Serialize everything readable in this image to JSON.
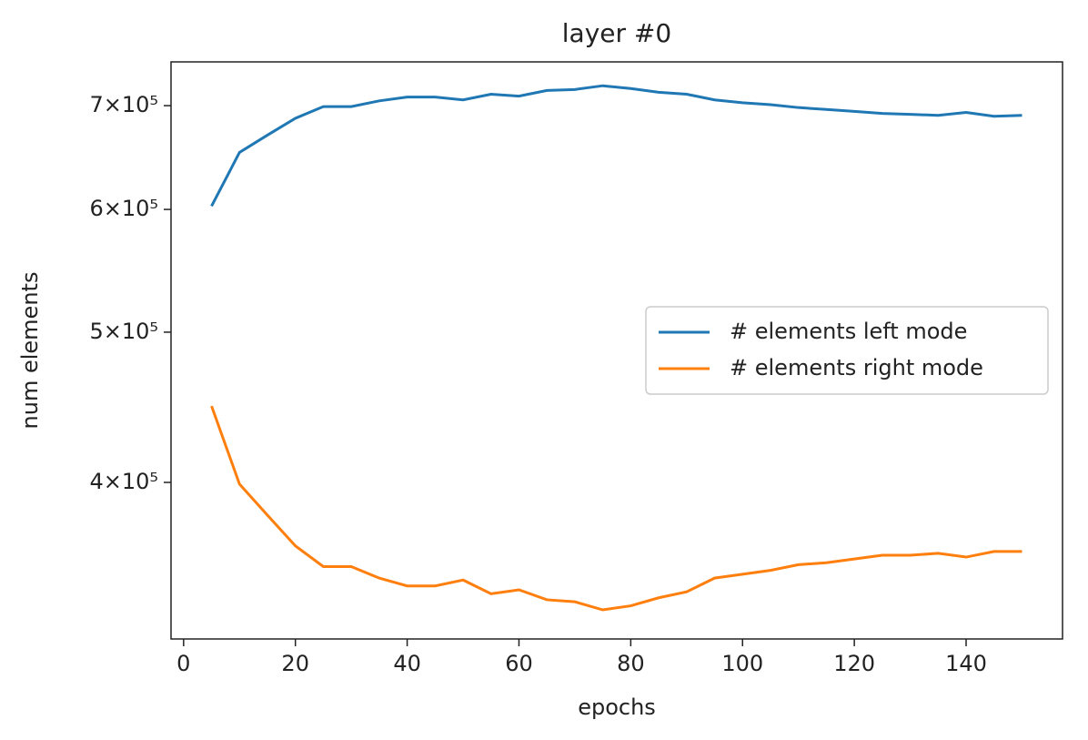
{
  "chart_data": {
    "type": "line",
    "title": "layer #0",
    "xlabel": "epochs",
    "ylabel": "num elements",
    "x": [
      5,
      10,
      15,
      20,
      25,
      30,
      35,
      40,
      45,
      50,
      55,
      60,
      65,
      70,
      75,
      80,
      85,
      90,
      95,
      100,
      105,
      110,
      115,
      120,
      125,
      130,
      135,
      140,
      145,
      150
    ],
    "series": [
      {
        "name": "# elements left mode",
        "color": "#1f77b4",
        "values": [
          603000,
          653000,
          670000,
          687000,
          699000,
          699000,
          705000,
          709000,
          709000,
          706000,
          712000,
          710000,
          716000,
          717000,
          721000,
          718000,
          714000,
          712000,
          706000,
          703000,
          701000,
          698000,
          696000,
          694000,
          692000,
          691000,
          690000,
          693000,
          689000,
          690000
        ]
      },
      {
        "name": "# elements right mode",
        "color": "#ff7f0e",
        "values": [
          448000,
          399000,
          381000,
          364000,
          353000,
          353000,
          347000,
          343000,
          343000,
          346000,
          339000,
          341000,
          336000,
          335000,
          331000,
          333000,
          337000,
          340000,
          347000,
          349000,
          351000,
          354000,
          355000,
          357000,
          359000,
          359000,
          360000,
          358000,
          361000,
          361000
        ]
      }
    ],
    "xlim": [
      -2.25,
      157.25
    ],
    "xticks": [
      0,
      20,
      40,
      60,
      80,
      100,
      120,
      140
    ],
    "ylim": [
      317000,
      747000
    ],
    "log_y": true,
    "yticks": [
      {
        "value": 400000,
        "label": "4×10⁵"
      },
      {
        "value": 500000,
        "label": "5×10⁵"
      },
      {
        "value": 600000,
        "label": "6×10⁵"
      },
      {
        "value": 700000,
        "label": "7×10⁵"
      }
    ],
    "legend": "center right",
    "grid": false
  }
}
